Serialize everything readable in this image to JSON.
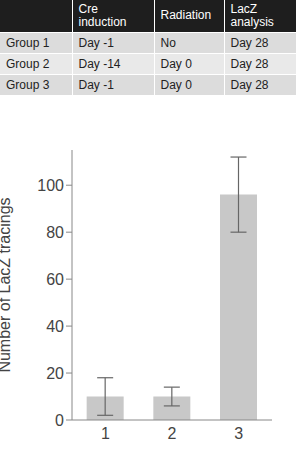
{
  "table": {
    "header": [
      "Cre induction",
      "Radiation",
      "LacZ analysis"
    ],
    "rows": [
      {
        "label": "Group 1",
        "cells": [
          "Day -1",
          "No",
          "Day 28"
        ]
      },
      {
        "label": "Group 2",
        "cells": [
          "Day -14",
          "Day 0",
          "Day 28"
        ]
      },
      {
        "label": "Group 3",
        "cells": [
          "Day -1",
          "Day 0",
          "Day 28"
        ]
      }
    ]
  },
  "chart_data": {
    "type": "bar",
    "categories": [
      "1",
      "2",
      "3"
    ],
    "values": [
      10,
      10,
      96
    ],
    "errors": [
      8,
      4,
      16
    ],
    "color": "#c8c8c8",
    "ylim": [
      0,
      115
    ],
    "yticks": [
      0,
      20,
      40,
      60,
      80,
      100
    ],
    "y_label": "Number of LacZ tracings"
  }
}
